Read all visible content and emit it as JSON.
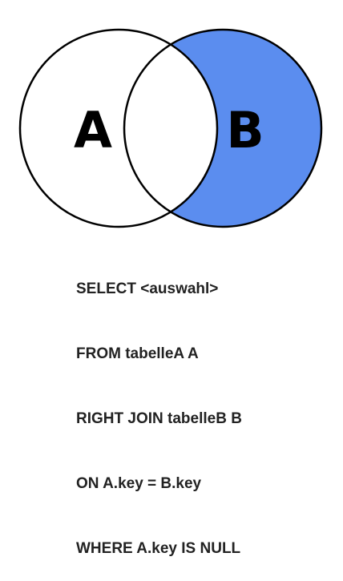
{
  "venn": {
    "label_a": "A",
    "label_b": "B",
    "highlight": "B only (excluding A)",
    "colors": {
      "fill": "#5b8def",
      "stroke": "#000000",
      "background": "#ffffff"
    }
  },
  "query": {
    "lines": [
      "SELECT <auswahl>",
      "FROM tabelleA A",
      "RIGHT JOIN tabelleB B",
      "ON A.key = B.key",
      "WHERE A.key IS NULL"
    ]
  }
}
